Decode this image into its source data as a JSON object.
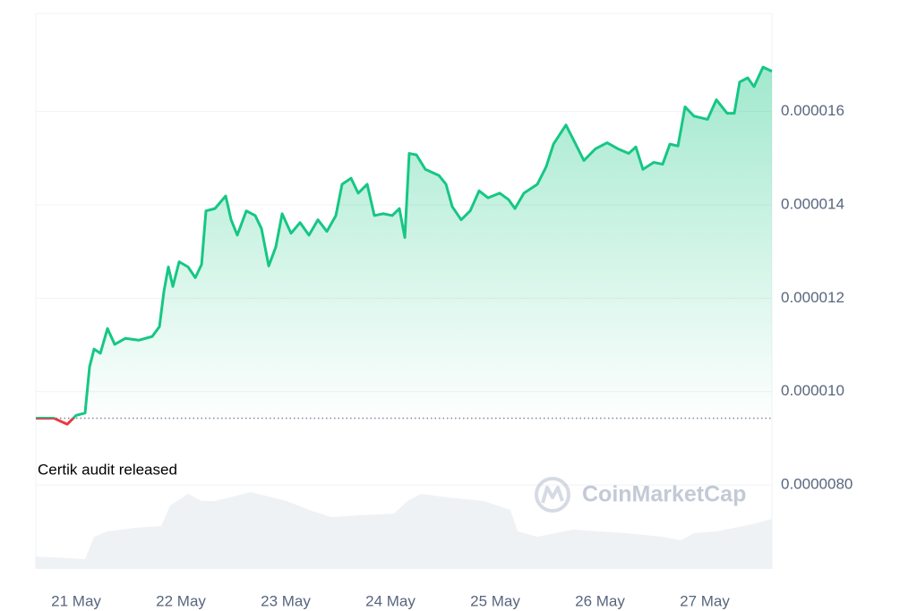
{
  "chart_data": {
    "type": "line",
    "annotation": "Certik audit released",
    "watermark": "CoinMarketCap",
    "color": "#16c784",
    "down_color": "#ea3943",
    "reference": 9.43e-06,
    "x": [
      -0.385,
      -0.214,
      -0.085,
      0,
      0.085,
      0.128,
      0.171,
      0.231,
      0.299,
      0.368,
      0.47,
      0.598,
      0.726,
      0.795,
      0.838,
      0.88,
      0.923,
      0.983,
      1.068,
      1.137,
      1.197,
      1.239,
      1.325,
      1.427,
      1.479,
      1.538,
      1.624,
      1.709,
      1.769,
      1.838,
      1.906,
      1.966,
      2.051,
      2.137,
      2.222,
      2.308,
      2.393,
      2.479,
      2.538,
      2.624,
      2.692,
      2.778,
      2.846,
      2.932,
      3.017,
      3.085,
      3.137,
      3.179,
      3.248,
      3.333,
      3.462,
      3.53,
      3.59,
      3.675,
      3.761,
      3.846,
      3.932,
      4.043,
      4.128,
      4.188,
      4.274,
      4.402,
      4.487,
      4.556,
      4.675,
      4.761,
      4.846,
      4.957,
      5.068,
      5.171,
      5.274,
      5.342,
      5.41,
      5.513,
      5.598,
      5.667,
      5.744,
      5.812,
      5.897,
      6.026,
      6.111,
      6.214,
      6.282,
      6.333,
      6.41,
      6.47,
      6.556,
      6.641
    ],
    "series": [
      {
        "values": [
          9.43e-06,
          9.43e-06,
          9.3e-06,
          9.49e-06,
          9.54e-06,
          1.053e-05,
          1.091e-05,
          1.082e-05,
          1.135e-05,
          1.101e-05,
          1.114e-05,
          1.11e-05,
          1.118e-05,
          1.139e-05,
          1.215e-05,
          1.267e-05,
          1.225e-05,
          1.278e-05,
          1.267e-05,
          1.244e-05,
          1.272e-05,
          1.387e-05,
          1.392e-05,
          1.419e-05,
          1.368e-05,
          1.335e-05,
          1.387e-05,
          1.377e-05,
          1.349e-05,
          1.269e-05,
          1.31e-05,
          1.381e-05,
          1.339e-05,
          1.362e-05,
          1.335e-05,
          1.368e-05,
          1.343e-05,
          1.377e-05,
          1.444e-05,
          1.457e-05,
          1.425e-05,
          1.444e-05,
          1.377e-05,
          1.381e-05,
          1.377e-05,
          1.392e-05,
          1.33e-05,
          1.51e-05,
          1.507e-05,
          1.476e-05,
          1.463e-05,
          1.444e-05,
          1.396e-05,
          1.368e-05,
          1.387e-05,
          1.43e-05,
          1.415e-05,
          1.425e-05,
          1.411e-05,
          1.392e-05,
          1.425e-05,
          1.444e-05,
          1.482e-05,
          1.53e-05,
          1.571e-05,
          1.533e-05,
          1.495e-05,
          1.52e-05,
          1.533e-05,
          1.52e-05,
          1.51e-05,
          1.524e-05,
          1.476e-05,
          1.491e-05,
          1.487e-05,
          1.53e-05,
          1.526e-05,
          1.61e-05,
          1.59e-05,
          1.583e-05,
          1.625e-05,
          1.596e-05,
          1.596e-05,
          1.663e-05,
          1.672e-05,
          1.653e-05,
          1.695e-05,
          1.686e-05
        ]
      }
    ],
    "volume": {
      "x": [
        -0.385,
        0.085,
        0.171,
        0.299,
        0.556,
        0.812,
        0.897,
        1.068,
        1.197,
        1.325,
        1.667,
        1.838,
        2.009,
        2.222,
        2.436,
        2.692,
        3.034,
        3.162,
        3.291,
        3.547,
        3.889,
        4.145,
        4.214,
        4.402,
        4.744,
        5.256,
        5.598,
        5.769,
        5.897,
        6.111,
        6.453,
        6.641
      ],
      "values": [
        14,
        11,
        36,
        42,
        46,
        48,
        71,
        84,
        76,
        76,
        86,
        81,
        76,
        66,
        58,
        60,
        62,
        76,
        84,
        80,
        76,
        66,
        42,
        36,
        44,
        40,
        36,
        32,
        40,
        42,
        50,
        56
      ],
      "ylim": [
        0,
        90
      ],
      "color": "#eff2f5"
    },
    "xlim": [
      -0.385,
      6.641
    ],
    "xticks": [
      {
        "value": 0,
        "label": "21 May"
      },
      {
        "value": 1,
        "label": "22 May"
      },
      {
        "value": 2,
        "label": "23 May"
      },
      {
        "value": 3,
        "label": "24 May"
      },
      {
        "value": 4,
        "label": "25 May"
      },
      {
        "value": 5,
        "label": "26 May"
      },
      {
        "value": 6,
        "label": "27 May"
      }
    ],
    "ylim": [
      6.2e-06,
      1.81e-05
    ],
    "yticks": [
      {
        "value": 8e-06,
        "label": "0.0000080"
      },
      {
        "value": 1e-05,
        "label": "0.000010"
      },
      1.2e-05,
      1.4e-05,
      1.6e-05
    ],
    "grid": true
  }
}
